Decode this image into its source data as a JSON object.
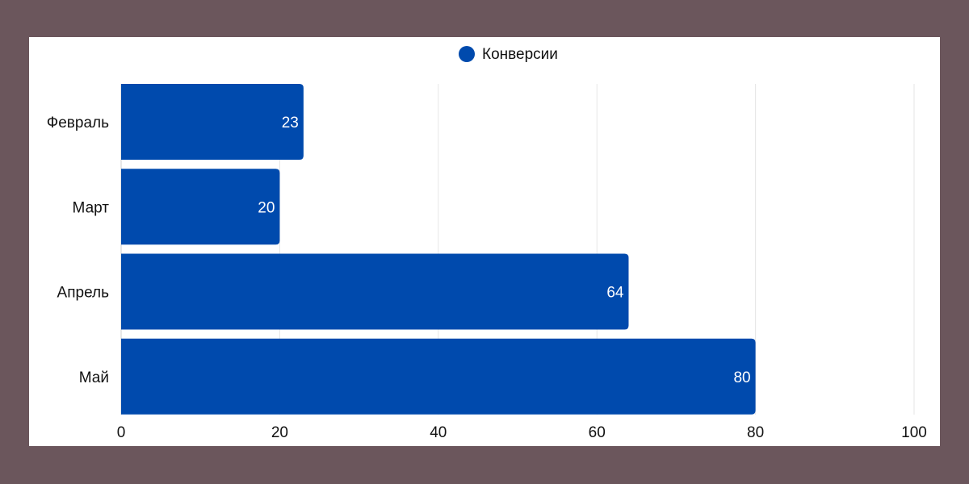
{
  "chart_data": {
    "type": "bar",
    "orientation": "horizontal",
    "title": "",
    "xlabel": "",
    "ylabel": "",
    "categories": [
      "Февраль",
      "Март",
      "Апрель",
      "Май"
    ],
    "series": [
      {
        "name": "Конверсии",
        "values": [
          23,
          20,
          64,
          80
        ],
        "color": "#004aad"
      }
    ],
    "xlim": [
      0,
      100
    ],
    "xticks": [
      0,
      20,
      40,
      60,
      80,
      100
    ],
    "grid": true,
    "legend": "top-center",
    "data_labels": true
  },
  "colors": {
    "background": "#6b565c",
    "panel": "#ffffff",
    "bar": "#004aad",
    "grid": "#e6e6e6"
  }
}
